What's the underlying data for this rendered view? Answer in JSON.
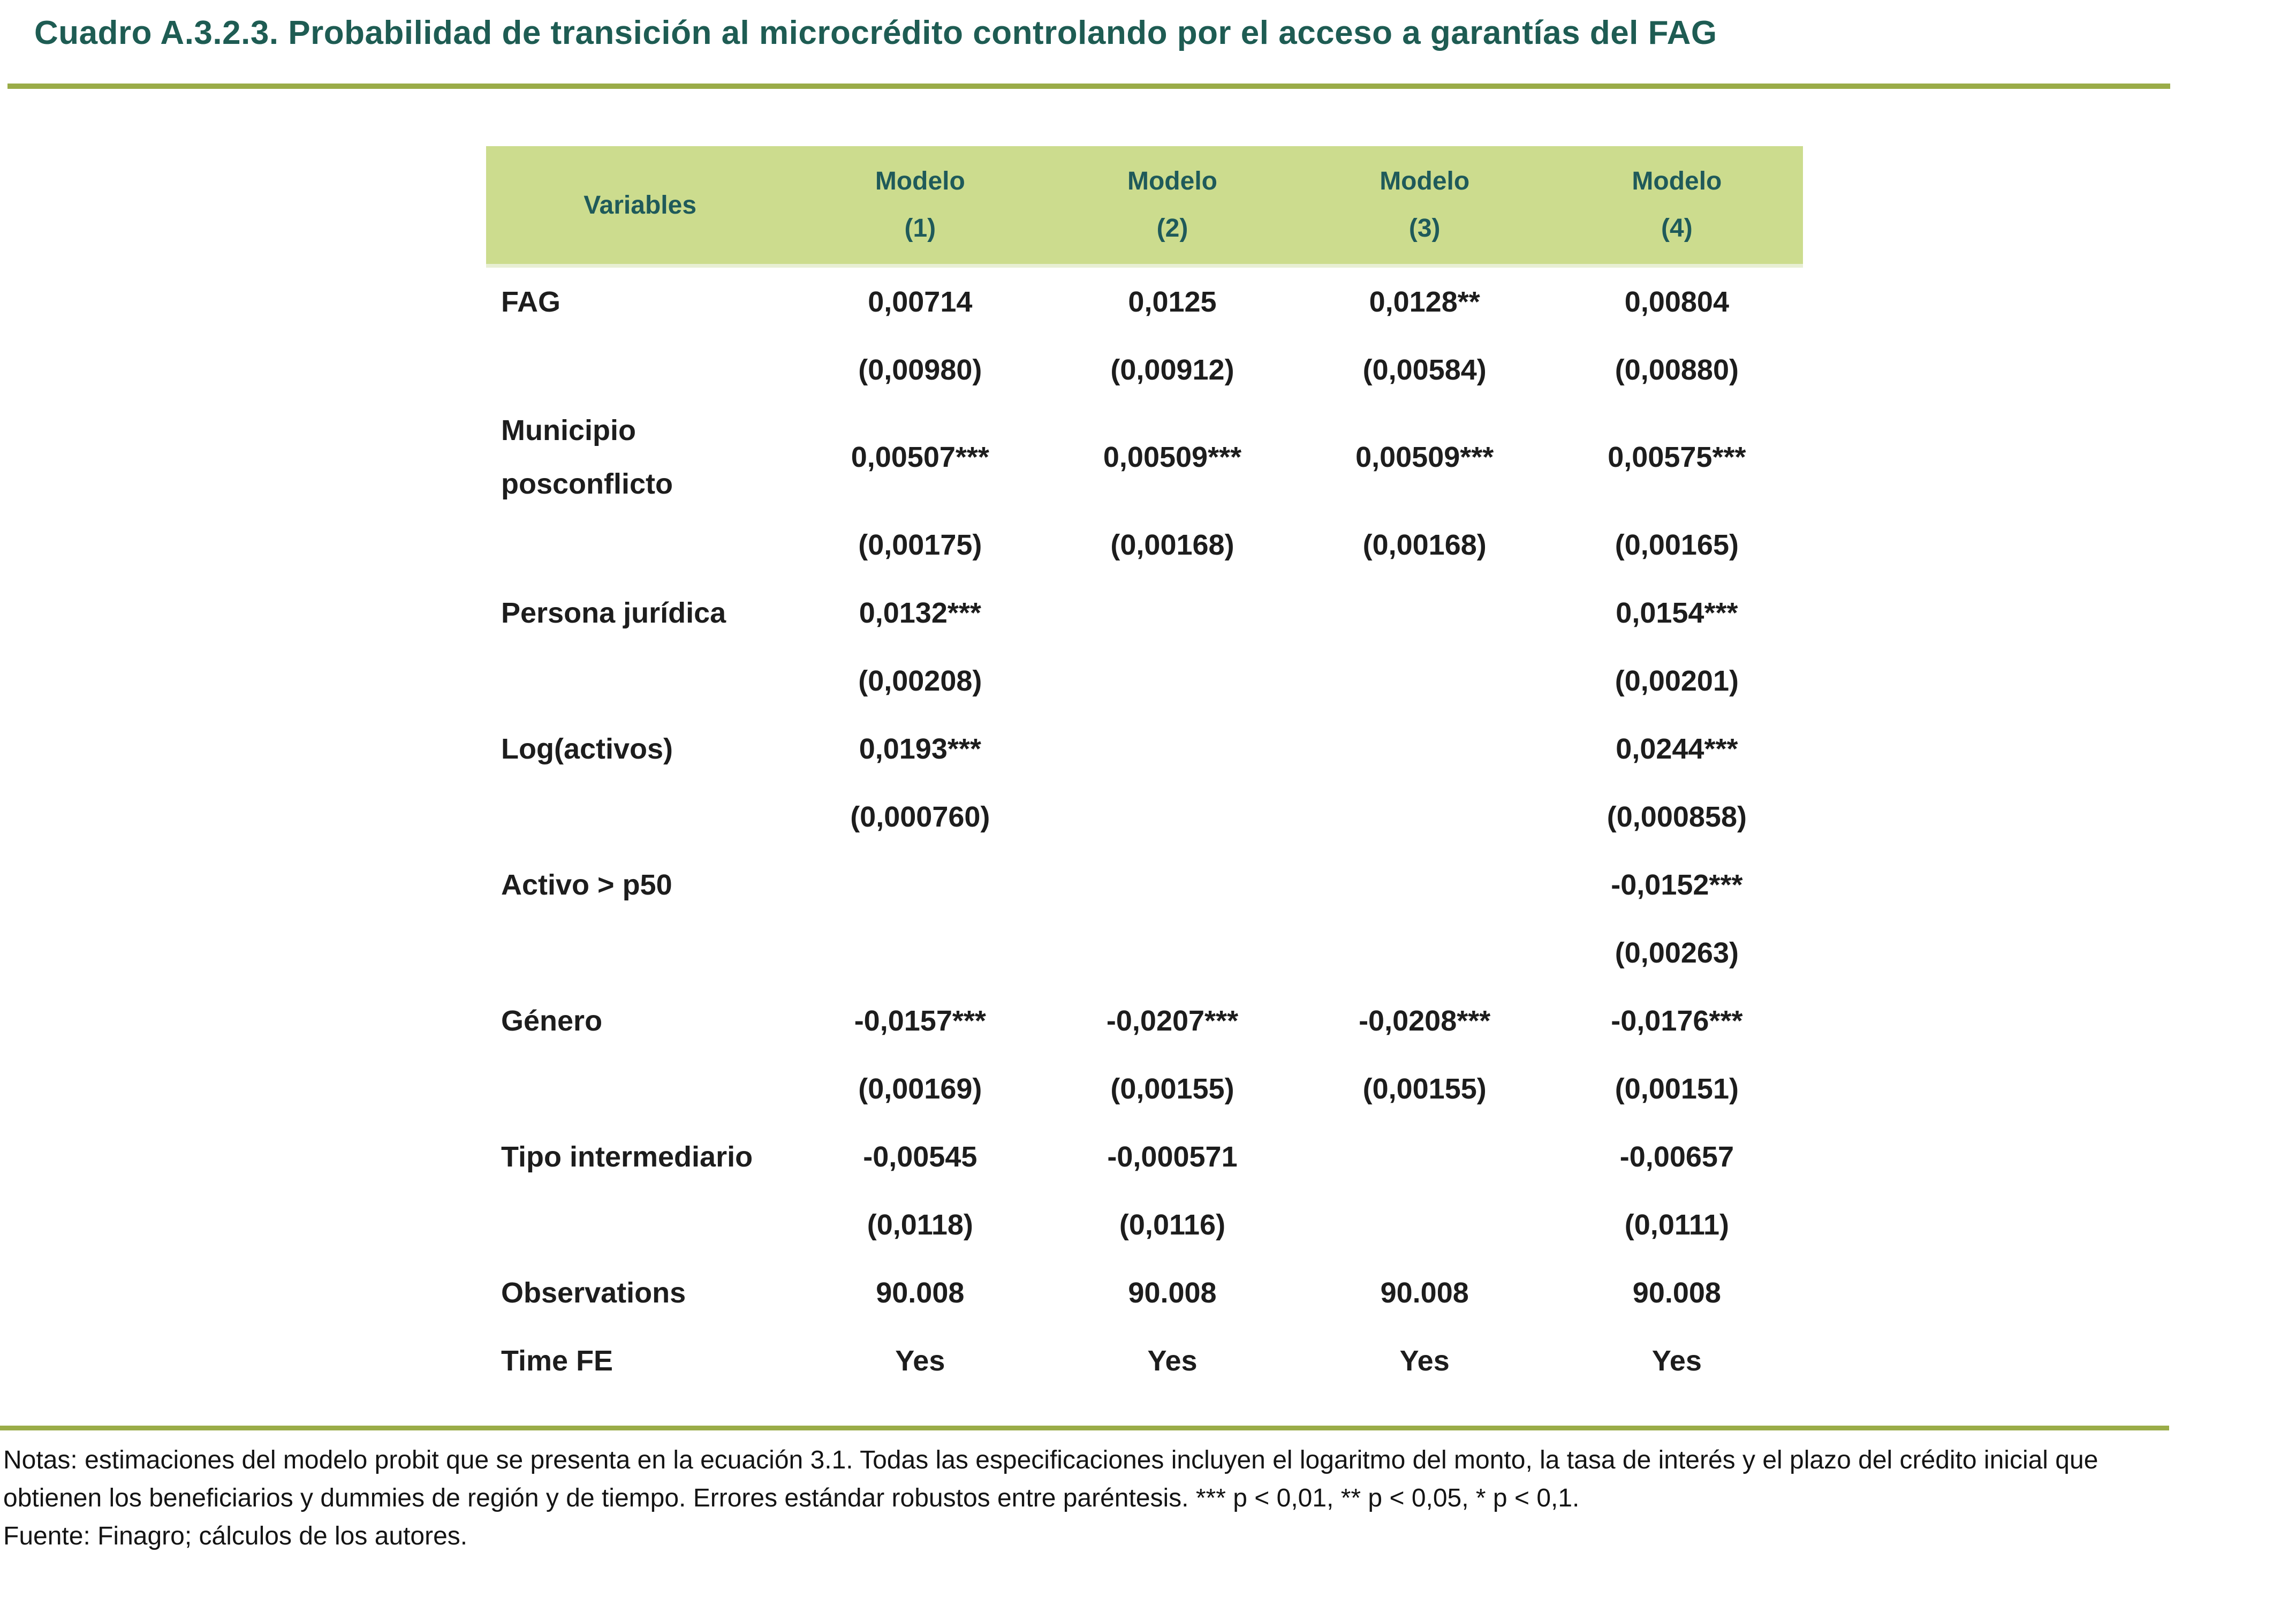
{
  "title": "Cuadro A.3.2.3. Probabilidad de transición al microcrédito controlando por el acceso a garantías del FAG",
  "colors": {
    "title_teal": "#1e5c53",
    "header_text_teal": "#1f5a5a",
    "header_background_green": "#ccdc8e",
    "rule_olive_green": "#9aac48",
    "body_text": "#1d1d1d"
  },
  "table": {
    "header": {
      "variables": "Variables",
      "models": [
        {
          "name": "Modelo",
          "number": "(1)"
        },
        {
          "name": "Modelo",
          "number": "(2)"
        },
        {
          "name": "Modelo",
          "number": "(3)"
        },
        {
          "name": "Modelo",
          "number": "(4)"
        }
      ]
    },
    "rows": [
      {
        "label": "FAG",
        "values": [
          "0,00714",
          "0,0125",
          "0,0128**",
          "0,00804"
        ]
      },
      {
        "label": "",
        "values": [
          "(0,00980)",
          "(0,00912)",
          "(0,00584)",
          "(0,00880)"
        ]
      },
      {
        "label": "Municipio",
        "label2": "posconflicto",
        "values": [
          "0,00507***",
          "0,00509***",
          "0,00509***",
          "0,00575***"
        ]
      },
      {
        "label": "",
        "values": [
          "(0,00175)",
          "(0,00168)",
          "(0,00168)",
          "(0,00165)"
        ]
      },
      {
        "label": "Persona jurídica",
        "values": [
          "0,0132***",
          "",
          "",
          "0,0154***"
        ]
      },
      {
        "label": "",
        "values": [
          "(0,00208)",
          "",
          "",
          "(0,00201)"
        ]
      },
      {
        "label": "Log(activos)",
        "values": [
          "0,0193***",
          "",
          "",
          "0,0244***"
        ]
      },
      {
        "label": "",
        "values": [
          "(0,000760)",
          "",
          "",
          "(0,000858)"
        ]
      },
      {
        "label": "Activo > p50",
        "values": [
          "",
          "",
          "",
          "-0,0152***"
        ]
      },
      {
        "label": "",
        "values": [
          "",
          "",
          "",
          "(0,00263)"
        ]
      },
      {
        "label": "Género",
        "values": [
          "-0,0157***",
          "-0,0207***",
          "-0,0208***",
          "-0,0176***"
        ]
      },
      {
        "label": "",
        "values": [
          "(0,00169)",
          "(0,00155)",
          "(0,00155)",
          "(0,00151)"
        ]
      },
      {
        "label": "Tipo intermediario",
        "values": [
          "-0,00545",
          "-0,000571",
          "",
          "-0,00657"
        ]
      },
      {
        "label": "",
        "values": [
          "(0,0118)",
          "(0,0116)",
          "",
          "(0,0111)"
        ]
      },
      {
        "label": "Observations",
        "values": [
          "90.008",
          "90.008",
          "90.008",
          "90.008"
        ]
      },
      {
        "label": "Time FE",
        "values": [
          "Yes",
          "Yes",
          "Yes",
          "Yes"
        ]
      }
    ]
  },
  "notes": {
    "text": "Notas: estimaciones del modelo probit que se presenta en la ecuación 3.1. Todas las especificaciones incluyen el logaritmo del monto, la tasa de interés y el plazo del crédito inicial que obtienen los beneficiarios y dummies de región y de tiempo. Errores estándar robustos entre paréntesis. *** p < 0,01, ** p < 0,05, * p < 0,1.",
    "source": "Fuente: Finagro; cálculos de los autores."
  }
}
